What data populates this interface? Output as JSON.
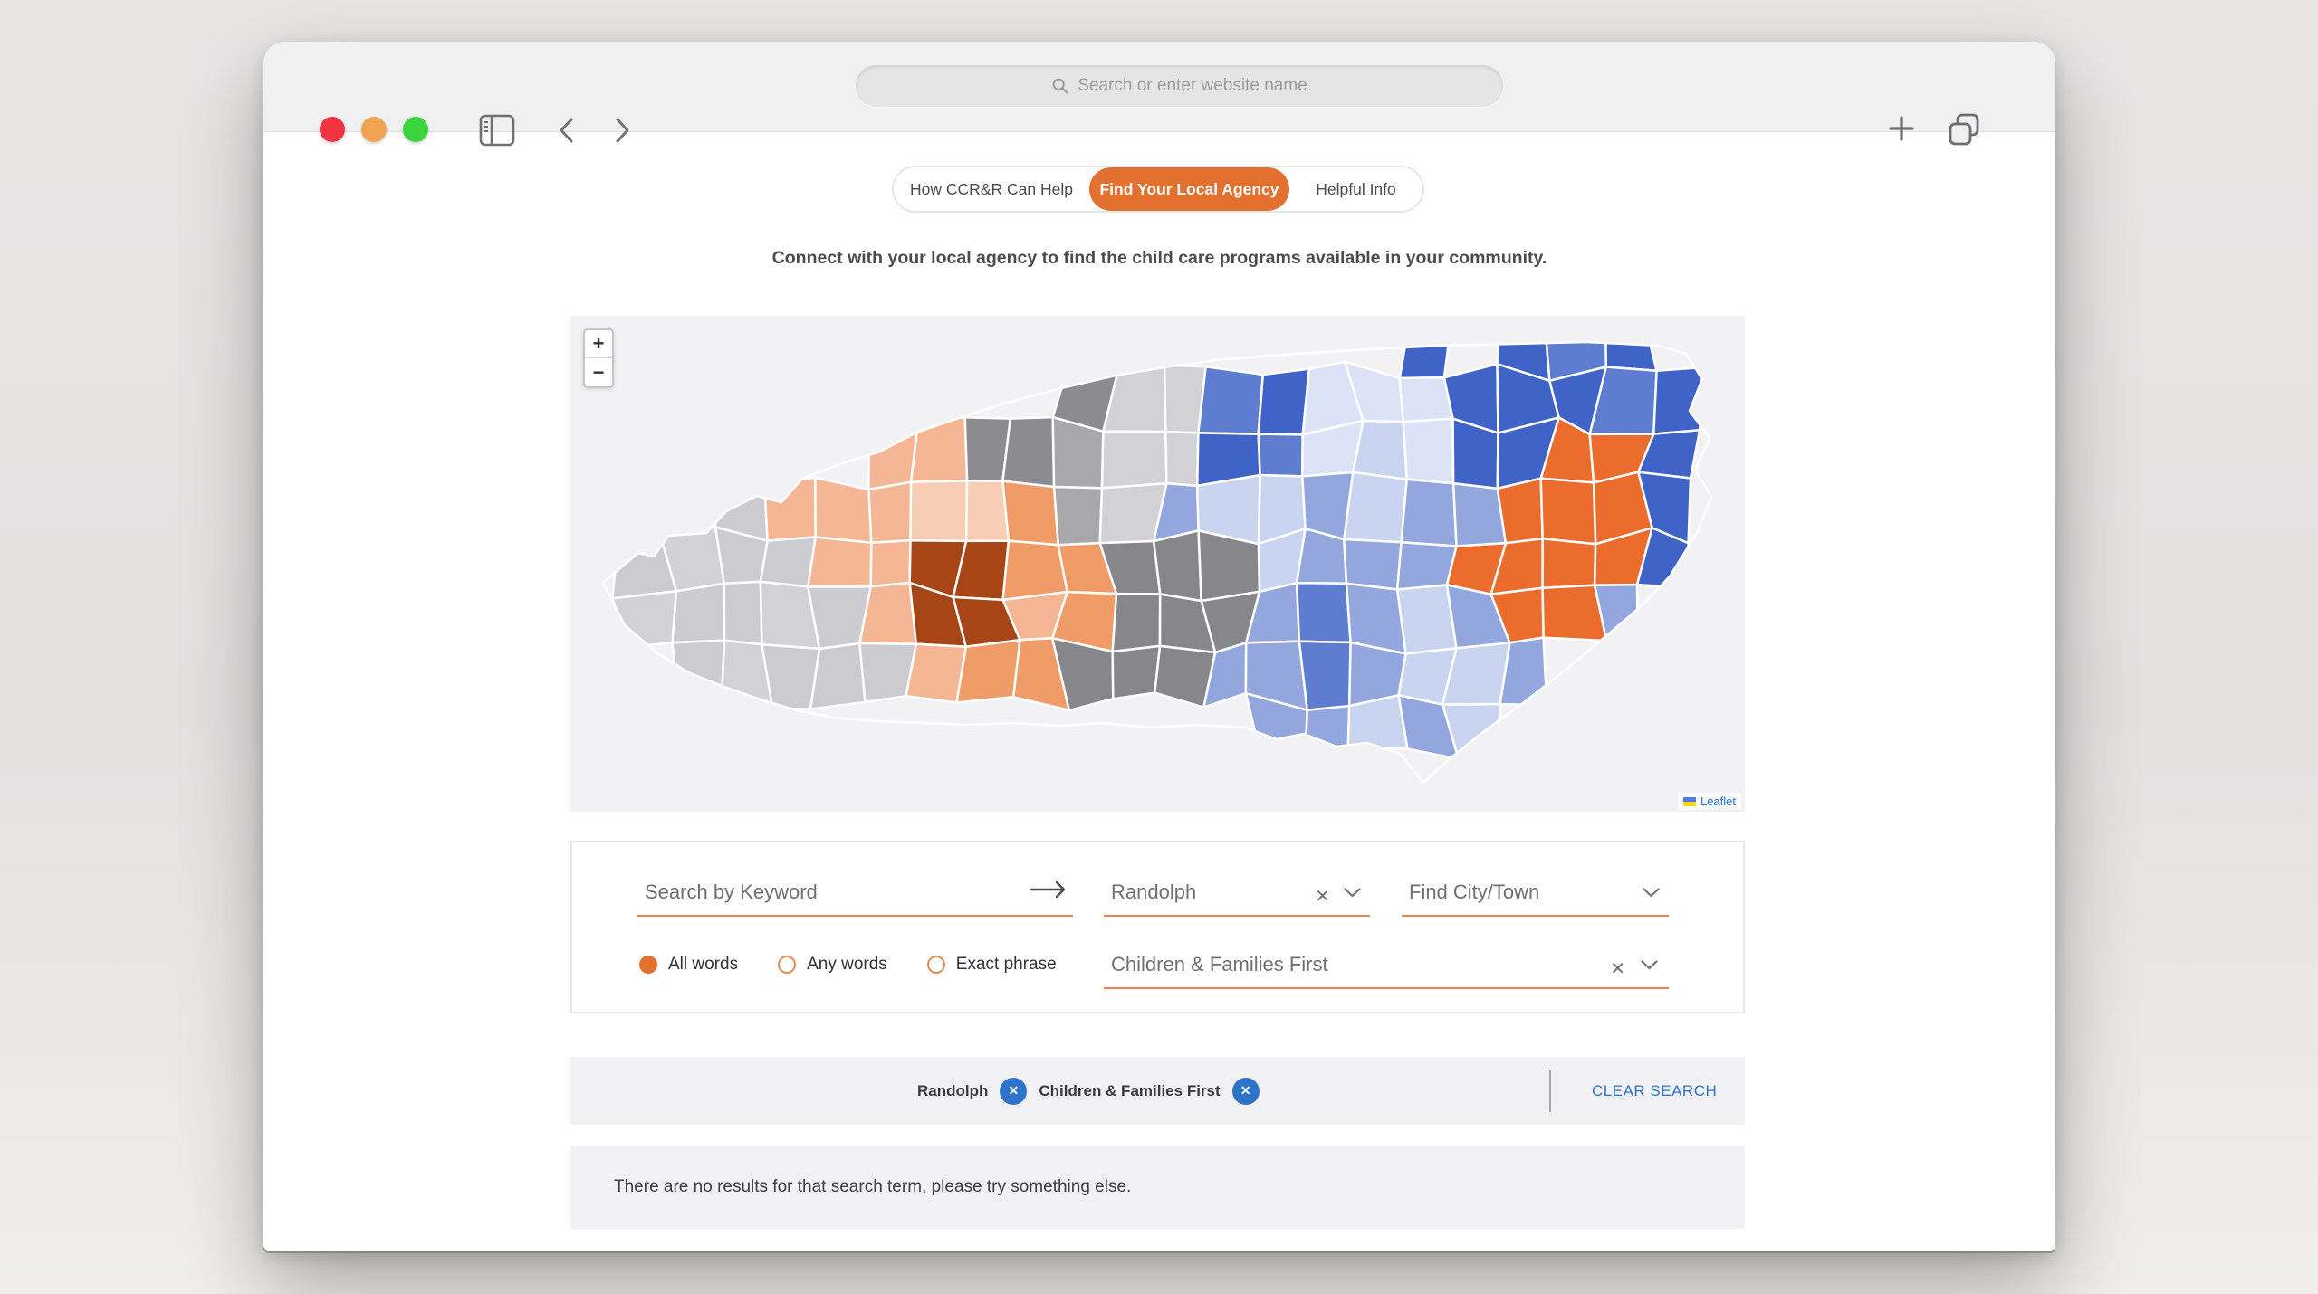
{
  "browser": {
    "url_placeholder": "Search or enter website name",
    "traffic_lights": {
      "close": "#f03440",
      "minimize": "#f0a351",
      "zoom": "#3cd43c"
    }
  },
  "tabs": {
    "items": [
      {
        "label": "How CCR&R Can Help",
        "active": false
      },
      {
        "label": "Find Your Local Agency",
        "active": true
      },
      {
        "label": "Helpful Info",
        "active": false
      }
    ]
  },
  "subtitle": "Connect with your local agency to find the child care programs available in your community.",
  "map": {
    "zoom_in": "+",
    "zoom_out": "−",
    "attribution": "Leaflet",
    "background": "#f2f2f4",
    "palette": {
      "G": "#cbcbd0",
      "H": "#d2d2d6",
      "D": "#8c8c90",
      "E": "#87878b",
      "M": "#a8a8ac",
      "P": "#f4b695",
      "Q": "#f8cdb5",
      "S": "#ef9c68",
      "R": "#a84517",
      "O": "#ec6c2e",
      "B": "#3f63c6",
      "C": "#5e7cd0",
      "b": "#93a6de",
      "L": "#c9d4f0",
      "W": "#dde3f6"
    },
    "region_grid": [
      "GGGGGGGGDDDHHBBWWBBBCBBB",
      "GGGGGPPPDDDHHCBWWWBBBCBB",
      "GGGGPPPPDDMHHBCWLWBBOOBC",
      "GGGGPPPQQSMHbLLbLbbOOOBB",
      "GGHGGPPRRSSEEELbbbOOOOBB",
      "GHGGHGPRRPSEEEbCbLbOObBB",
      "GGGHGGGPSSEEEbbCbLLbbbbb",
      "GGGGGGGGPSEEbCbbLbLbbbbb",
      "bbbbbbbbbbbbbbbCbbbbbbbb"
    ]
  },
  "search": {
    "keyword_placeholder": "Search by Keyword",
    "county_value": "Randolph",
    "city_placeholder": "Find City/Town",
    "agency_value": "Children & Families First",
    "radios": [
      {
        "label": "All words",
        "selected": true
      },
      {
        "label": "Any words",
        "selected": false
      },
      {
        "label": "Exact phrase",
        "selected": false
      }
    ]
  },
  "chips": {
    "items": [
      "Randolph",
      "Children & Families First"
    ],
    "clear_label": "CLEAR SEARCH"
  },
  "results": {
    "message": "There are no results for that search term, please try something else."
  },
  "colors": {
    "accent_orange": "#e2702f",
    "underline_orange": "#f0834f",
    "accent_blue": "#2d74c9"
  }
}
